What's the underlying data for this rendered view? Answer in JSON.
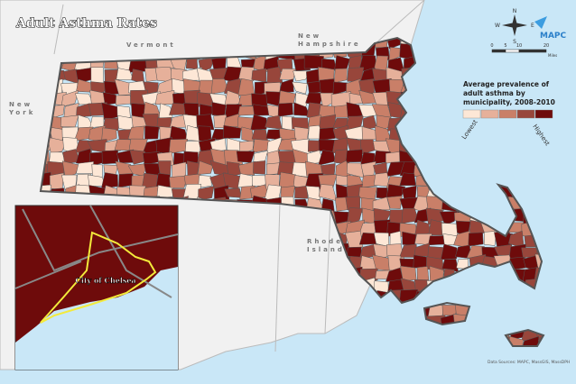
{
  "title": "Adult Asthma Rates",
  "region_labels": [
    {
      "lines": [
        "Vermont"
      ]
    },
    {
      "lines": [
        "New",
        "Hampshire"
      ]
    },
    {
      "lines": [
        "New",
        "York"
      ]
    },
    {
      "lines": [
        "Rhode",
        "Island"
      ]
    }
  ],
  "legend": {
    "title_lines": [
      "Average prevalence of",
      "adult asthma by",
      "municipality, 2008-2010"
    ],
    "colors": [
      "#fde7d6",
      "#e6b09a",
      "#c97f68",
      "#98463b",
      "#6e0b0b"
    ],
    "low": "Lowest",
    "high": "Highest"
  },
  "compass": {
    "n": "N",
    "s": "S",
    "e": "E",
    "w": "W"
  },
  "scale_bar": {
    "ticks": [
      0,
      5,
      10,
      20
    ],
    "unit": "Miles"
  },
  "logo": "MAPC",
  "inset": {
    "label": "City of Chelsea"
  },
  "source": "Data Sources: MAPC, MassGIS, MassDPH"
}
